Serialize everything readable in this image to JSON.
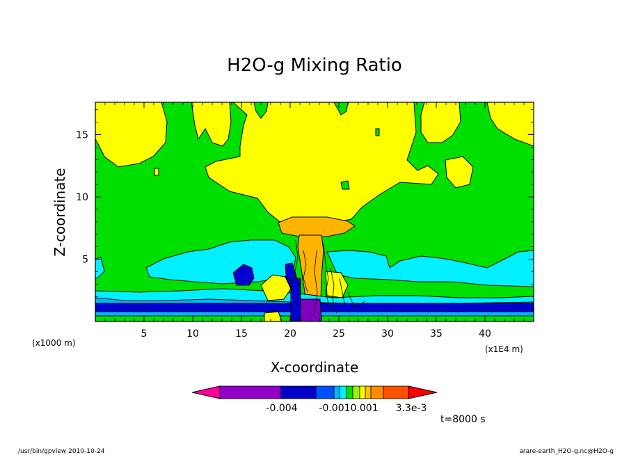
{
  "chart_data": {
    "type": "contour",
    "title": "H2O-g Mixing Ratio",
    "xlabel": "X-coordinate",
    "ylabel": "Z-coordinate",
    "x_unit_left": "(x1000 m)",
    "x_unit_right": "(x1E4 m)",
    "xlim": [
      0,
      45
    ],
    "ylim": [
      0,
      17.6
    ],
    "x_ticks": [
      "5",
      "10",
      "15",
      "20",
      "25",
      "30",
      "35",
      "40"
    ],
    "x_tick_values": [
      5,
      10,
      15,
      20,
      25,
      30,
      35,
      40
    ],
    "y_ticks": [
      "5",
      "10",
      "15"
    ],
    "y_tick_values": [
      5,
      10,
      15
    ],
    "colorbar": {
      "labels": [
        "-0.004",
        "-0.0010.001",
        "3.3e-3"
      ],
      "colors": [
        "#ff00a0",
        "#9000c8",
        "#0000c8",
        "#0050ff",
        "#00b4ff",
        "#00f0ff",
        "#00e000",
        "#a0f000",
        "#ffff00",
        "#ffc000",
        "#ff8c00",
        "#ff5000",
        "#ff0000"
      ]
    },
    "time_label": "t=8000 s"
  },
  "footer": {
    "left": "/usr/bin/gpview  2010-10-24",
    "right": "arare-earth_H2O-g.nc@H2O-g"
  },
  "colors": {
    "green": "#00e000",
    "yellow": "#ffff00",
    "orange": "#ffb400",
    "cyan": "#00f0ff",
    "lightblue": "#00b4ff",
    "blue": "#0000d0",
    "purple": "#8000c0"
  }
}
